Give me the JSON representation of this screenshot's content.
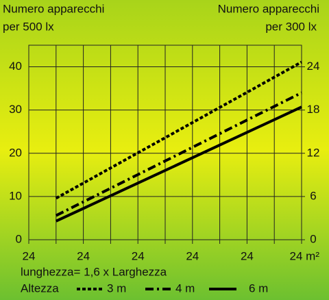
{
  "chart_data": {
    "type": "line",
    "ylabel": [
      "Numero apparecchi",
      "per 500 lx"
    ],
    "y2label": [
      "Numero apparecchi",
      "per 300 lx"
    ],
    "annotation": "lunghezza= 1,6 x Larghezza",
    "legend_title": "Altezza",
    "xlim": [
      0,
      10
    ],
    "xticks": [
      {
        "value": 0,
        "label": "24"
      },
      {
        "value": 2,
        "label": "24"
      },
      {
        "value": 4,
        "label": "24"
      },
      {
        "value": 6,
        "label": "24"
      },
      {
        "value": 8,
        "label": "24"
      },
      {
        "value": 10,
        "label": "24 m²"
      }
    ],
    "xminor": [
      1,
      3,
      5,
      7,
      9
    ],
    "ylim": [
      0,
      45
    ],
    "yticks": [
      0,
      10,
      20,
      30,
      40
    ],
    "y2lim": [
      0,
      27
    ],
    "y2ticks": [
      0,
      6,
      12,
      18,
      24
    ],
    "grid": true,
    "series": [
      {
        "name": "3 m",
        "color": "#000000",
        "linestyle": "dotted",
        "x": [
          1,
          10
        ],
        "values": [
          9.6,
          41.1
        ]
      },
      {
        "name": "4 m",
        "color": "#000000",
        "linestyle": "dashdot",
        "x": [
          1,
          10
        ],
        "values": [
          5.6,
          34
        ]
      },
      {
        "name": "6 m",
        "color": "#000000",
        "linestyle": "solid",
        "x": [
          1,
          10
        ],
        "values": [
          4.3,
          30.7
        ]
      }
    ]
  }
}
